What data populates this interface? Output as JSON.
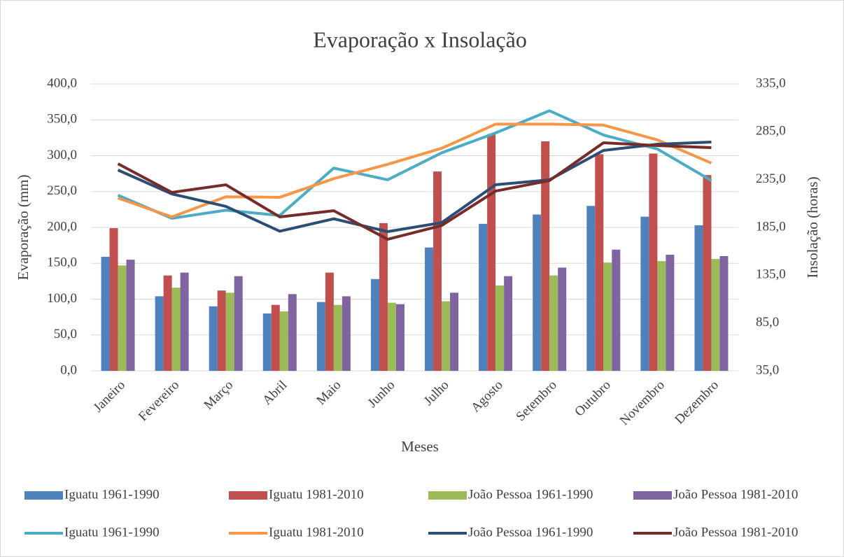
{
  "chart_data": {
    "type": "bar-line",
    "title": "Evaporação x Insolação",
    "x_label": "Meses",
    "y_label": "Evaporação (mm)",
    "y2_label": "Insolação (horas)",
    "categories": [
      "Janeiro",
      "Fevereiro",
      "Março",
      "Abril",
      "Maio",
      "Junho",
      "Julho",
      "Agosto",
      "Setembro",
      "Outubro",
      "Novembro",
      "Dezembro"
    ],
    "ylim": [
      0,
      400
    ],
    "yticks": [
      {
        "value": 0,
        "label": "0,0"
      },
      {
        "value": 50,
        "label": "50,0"
      },
      {
        "value": 100,
        "label": "100,0"
      },
      {
        "value": 150,
        "label": "150,0"
      },
      {
        "value": 200,
        "label": "200,0"
      },
      {
        "value": 250,
        "label": "250,0"
      },
      {
        "value": 300,
        "label": "300,0"
      },
      {
        "value": 350,
        "label": "350,0"
      },
      {
        "value": 400,
        "label": "400,0"
      }
    ],
    "y2lim": [
      35,
      335
    ],
    "y2ticks": [
      {
        "value": 35,
        "label": "35,0"
      },
      {
        "value": 85,
        "label": "85,0"
      },
      {
        "value": 135,
        "label": "135,0"
      },
      {
        "value": 185,
        "label": "185,0"
      },
      {
        "value": 235,
        "label": "235,0"
      },
      {
        "value": 285,
        "label": "285,0"
      },
      {
        "value": 335,
        "label": "335,0"
      }
    ],
    "grid": true,
    "legend": "bottom",
    "series": [
      {
        "name": "Iguatu 1961-1990",
        "type": "bar",
        "color": "#4f81bd",
        "values": [
          159,
          104,
          90,
          80,
          96,
          128,
          172,
          205,
          218,
          230,
          215,
          203
        ]
      },
      {
        "name": "Iguatu 1981-2010",
        "type": "bar",
        "color": "#c0504d",
        "values": [
          199,
          133,
          112,
          92,
          137,
          206,
          278,
          330,
          320,
          302,
          303,
          273
        ]
      },
      {
        "name": "João Pessoa 1961-1990",
        "type": "bar",
        "color": "#9bbb59",
        "values": [
          147,
          116,
          109,
          83,
          92,
          95,
          97,
          119,
          133,
          151,
          153,
          156
        ]
      },
      {
        "name": "João Pessoa 1981-2010",
        "type": "bar",
        "color": "#8064a2",
        "values": [
          155,
          137,
          132,
          107,
          104,
          93,
          109,
          132,
          144,
          169,
          162,
          160
        ]
      },
      {
        "name": "Iguatu 1961-1990",
        "type": "line",
        "axis": "y2",
        "color": "#4bacc6",
        "values": [
          218.7,
          194.5,
          203,
          197.5,
          247,
          234.8,
          263,
          283.8,
          307,
          281.6,
          267,
          234
        ]
      },
      {
        "name": "Iguatu 1981-2010",
        "type": "line",
        "axis": "y2",
        "color": "#f79646",
        "values": [
          215.7,
          196,
          217,
          216.5,
          236,
          251,
          267.7,
          293,
          293,
          292,
          276.5,
          252.3
        ]
      },
      {
        "name": "João Pessoa 1961-1990",
        "type": "line",
        "axis": "y2",
        "color": "#2c4d75",
        "values": [
          245,
          220,
          207,
          181,
          194,
          180.6,
          190,
          229.6,
          234.8,
          265.5,
          272,
          274.3
        ]
      },
      {
        "name": "João Pessoa 1981-2010",
        "type": "line",
        "axis": "y2",
        "color": "#772c2a",
        "values": [
          251.6,
          221.6,
          229.6,
          196,
          202.5,
          172.6,
          187,
          223,
          234,
          273.5,
          270.6,
          268.4
        ]
      }
    ]
  }
}
